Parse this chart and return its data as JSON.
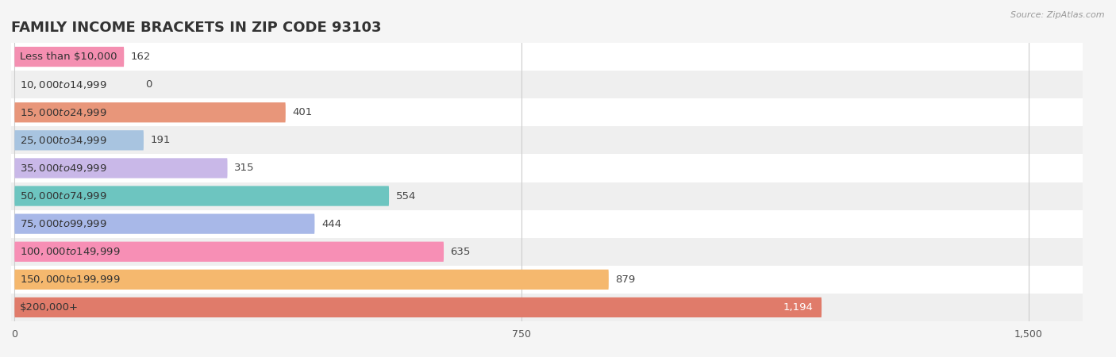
{
  "title": "FAMILY INCOME BRACKETS IN ZIP CODE 93103",
  "source_text": "Source: ZipAtlas.com",
  "categories": [
    "Less than $10,000",
    "$10,000 to $14,999",
    "$15,000 to $24,999",
    "$25,000 to $34,999",
    "$35,000 to $49,999",
    "$50,000 to $74,999",
    "$75,000 to $99,999",
    "$100,000 to $149,999",
    "$150,000 to $199,999",
    "$200,000+"
  ],
  "values": [
    162,
    0,
    401,
    191,
    315,
    554,
    444,
    635,
    879,
    1194
  ],
  "bar_colors": [
    "#f48fb1",
    "#ffcc99",
    "#e8967a",
    "#a8c4e0",
    "#c9b8e8",
    "#6dc5c0",
    "#a8b8e8",
    "#f78fb5",
    "#f5b86e",
    "#e07b6a"
  ],
  "background_color": "#f5f5f5",
  "row_bg_light": "#ffffff",
  "row_bg_dark": "#efefef",
  "xlim_max": 1500,
  "xticks": [
    0,
    750,
    1500
  ],
  "title_fontsize": 13,
  "label_fontsize": 9.5,
  "value_fontsize": 9.5,
  "bar_height": 0.72
}
